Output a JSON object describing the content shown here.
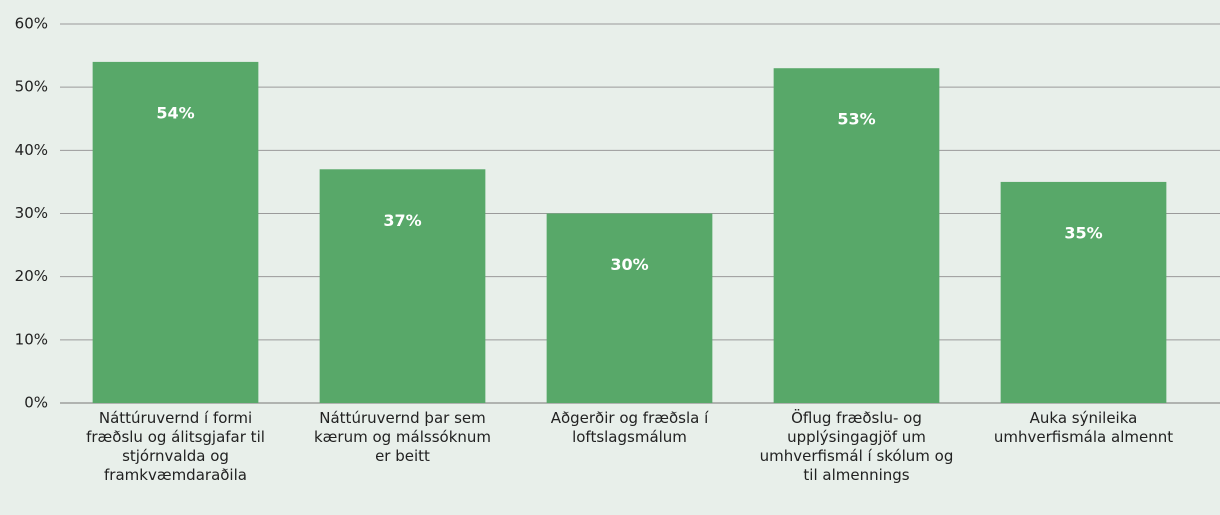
{
  "chart_data": {
    "type": "bar",
    "categories": [
      "Náttúruvernd í formi fræðslu og álitsgjafar til stjórnvalda og framkvæmdaraðila",
      "Náttúruvernd þar sem kærum og málssóknum er beitt",
      "Aðgerðir og fræðsla í loftslagsmálum",
      "Öflug fræðslu- og upplýsingagjöf um umhverfismál í skólum og til almennings",
      "Auka sýnileika umhverfismála almennt"
    ],
    "values": [
      54,
      37,
      30,
      53,
      35
    ],
    "value_labels": [
      "54%",
      "37%",
      "30%",
      "53%",
      "35%"
    ],
    "color": "#58a869",
    "ylim": [
      0,
      60
    ],
    "yticks": [
      {
        "value": 0,
        "label": "0%"
      },
      {
        "value": 10,
        "label": "10%"
      },
      {
        "value": 20,
        "label": "20%"
      },
      {
        "value": 30,
        "label": "30%"
      },
      {
        "value": 40,
        "label": "40%"
      },
      {
        "value": 50,
        "label": "50%"
      },
      {
        "value": 60,
        "label": "60%"
      }
    ],
    "grid": true
  }
}
